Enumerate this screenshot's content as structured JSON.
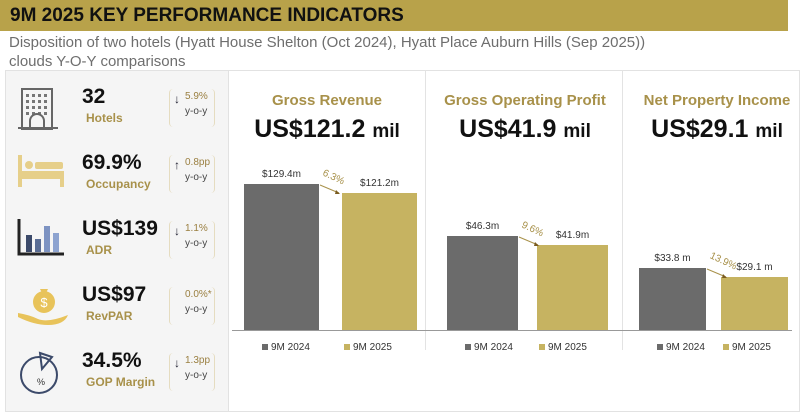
{
  "title": "9M 2025 KEY PERFORMANCE INDICATORS",
  "subtitle_line1": "Disposition of two hotels (Hyatt House Shelton (Oct 2024), Hyatt Place Auburn Hills (Sep 2025))",
  "subtitle_line2": "clouds Y-O-Y comparisons",
  "colors": {
    "accent": "#b8a24a",
    "prior": "#6b6b6b",
    "current": "#c6b361"
  },
  "kpis": [
    {
      "icon": "hotel-building-icon",
      "value": "32",
      "label": "Hotels",
      "change": "5.9%",
      "direction": "down",
      "yoy": "y-o-y"
    },
    {
      "icon": "bed-icon",
      "value": "69.9%",
      "label": "Occupancy",
      "change": "0.8pp",
      "direction": "up",
      "yoy": "y-o-y"
    },
    {
      "icon": "bar-chart-icon",
      "value": "US$139",
      "label": "ADR",
      "change": "1.1%",
      "direction": "down",
      "yoy": "y-o-y"
    },
    {
      "icon": "money-bag-hand-icon",
      "value": "US$97",
      "label": "RevPAR",
      "change": "0.0%*",
      "direction": "none",
      "yoy": "y-o-y"
    },
    {
      "icon": "pie-gauge-icon",
      "value": "34.5%",
      "label": "GOP Margin",
      "change": "1.3pp",
      "direction": "down",
      "yoy": "y-o-y"
    }
  ],
  "chart_data": [
    {
      "type": "bar",
      "title": "Gross Revenue",
      "headline": "US$121.2",
      "unit": "mil",
      "categories": [
        "9M 2024",
        "9M 2025"
      ],
      "values": [
        129.4,
        121.2
      ],
      "data_labels": [
        "$129.4m",
        "$121.2m"
      ],
      "change_label": "6.3%",
      "legend": [
        "9M 2024",
        "9M 2025"
      ]
    },
    {
      "type": "bar",
      "title": "Gross Operating Profit",
      "headline": "US$41.9",
      "unit": "mil",
      "categories": [
        "9M 2024",
        "9M 2025"
      ],
      "values": [
        46.3,
        41.9
      ],
      "data_labels": [
        "$46.3m",
        "$41.9m"
      ],
      "change_label": "9.6%",
      "legend": [
        "9M 2024",
        "9M 2025"
      ]
    },
    {
      "type": "bar",
      "title": "Net Property Income",
      "headline": "US$29.1",
      "unit": "mil",
      "categories": [
        "9M 2024",
        "9M 2025"
      ],
      "values": [
        33.8,
        29.1
      ],
      "data_labels": [
        "$33.8 m",
        "$29.1 m"
      ],
      "change_label": "13.9%",
      "legend": [
        "9M 2024",
        "9M 2025"
      ]
    }
  ]
}
